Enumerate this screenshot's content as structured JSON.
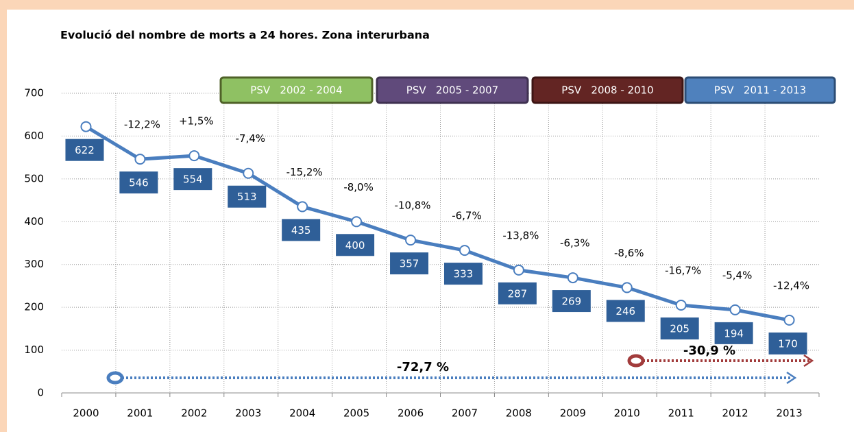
{
  "chart_data": {
    "type": "line",
    "title": "Evolució del nombre de morts a 24 hores. Zona interurbana",
    "categories": [
      "2000",
      "2001",
      "2002",
      "2003",
      "2004",
      "2005",
      "2006",
      "2007",
      "2008",
      "2009",
      "2010",
      "2011",
      "2012",
      "2013"
    ],
    "values": [
      622,
      546,
      554,
      513,
      435,
      400,
      357,
      333,
      287,
      269,
      246,
      205,
      194,
      170
    ],
    "color": "#4a7ebf",
    "label_color": "#2f5f98",
    "ylim": [
      0,
      700
    ],
    "yticks": [
      0,
      100,
      200,
      300,
      400,
      500,
      600,
      700
    ],
    "grid": true,
    "change_labels": [
      "-12,2%",
      "+1,5%",
      "-7,4%",
      "-15,2%",
      "-8,0%",
      "-10,8%",
      "-6,7%",
      "-13,8%",
      "-6,3%",
      "-8,6%",
      "-16,7%",
      "-5,4%",
      "-12,4%"
    ],
    "periods": [
      {
        "label": "PSV   2002 - 2004",
        "color": "#8fc163",
        "border": "#4f6228"
      },
      {
        "label": "PSV   2005 - 2007",
        "color": "#604a7b",
        "border": "#3f3151"
      },
      {
        "label": "PSV   2008 - 2010",
        "color": "#632523",
        "border": "#3d1514"
      },
      {
        "label": "PSV   2011 - 2013",
        "color": "#4f81bd",
        "border": "#2c4d75"
      }
    ],
    "arrows": [
      {
        "label": "-72,7 %",
        "color": "#4a7ebf"
      },
      {
        "label": "-30,9 %",
        "color": "#a23c3c"
      }
    ]
  }
}
